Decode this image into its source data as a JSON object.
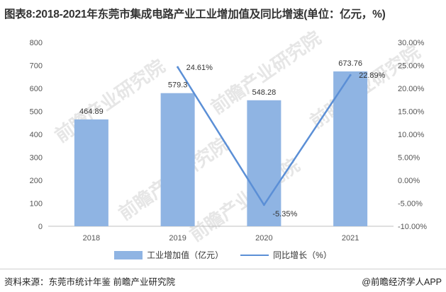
{
  "title": "图表8:2018-2021年东莞市集成电路产业工业增加值及同比增速(单位：亿元，%)",
  "source": "资料来源：东莞市统计年鉴 前瞻产业研究院",
  "brand": "@前瞻经济学人APP",
  "watermark": "前瞻产业研究院",
  "colors": {
    "bar": "#8fb4e3",
    "line": "#5b8fd6",
    "axis_text": "#555555",
    "grid": "#e3e3e3"
  },
  "chart_data": {
    "type": "bar",
    "categories": [
      "2018",
      "2019",
      "2020",
      "2021"
    ],
    "series": [
      {
        "name": "工业增加值（亿元）",
        "type": "bar",
        "axis": "left",
        "values": [
          464.89,
          579.3,
          548.28,
          673.76
        ],
        "labels": [
          "464.89",
          "579.3",
          "548.28",
          "673.76"
        ]
      },
      {
        "name": "同比增长（%）",
        "type": "line",
        "axis": "right",
        "values": [
          null,
          24.61,
          -5.35,
          22.89
        ],
        "labels": [
          "",
          "24.61%",
          "-5.35%",
          "22.89%"
        ]
      }
    ],
    "y_left": {
      "min": 0,
      "max": 800,
      "step": 100,
      "ticks": [
        "0",
        "100",
        "200",
        "300",
        "400",
        "500",
        "600",
        "700",
        "800"
      ]
    },
    "y_right": {
      "min": -10,
      "max": 30,
      "step": 5,
      "ticks": [
        "-10.00%",
        "-5.00%",
        "0.00%",
        "5.00%",
        "10.00%",
        "15.00%",
        "20.00%",
        "25.00%",
        "30.00%"
      ]
    },
    "grid": false,
    "legend": "bottom"
  }
}
